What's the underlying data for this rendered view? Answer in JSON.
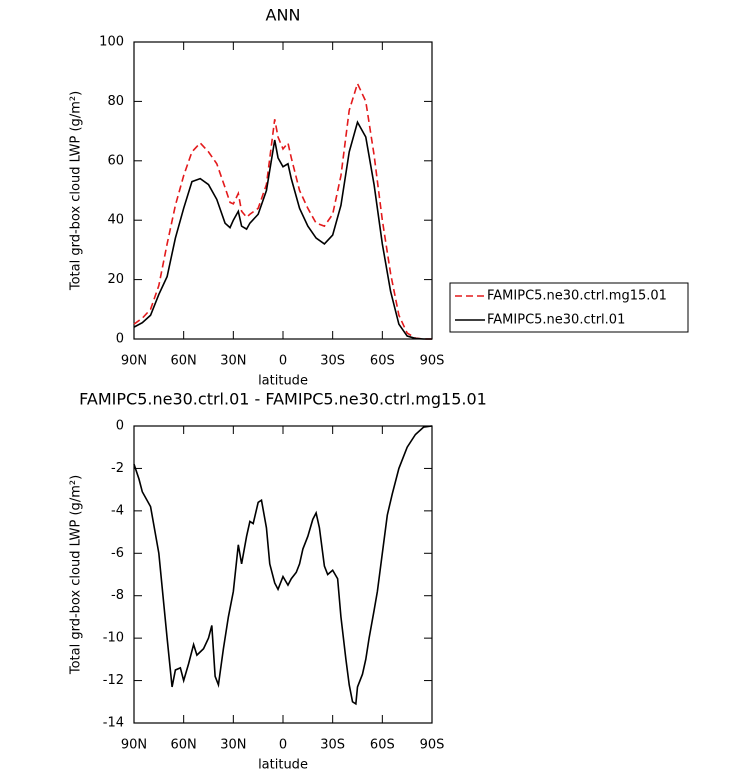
{
  "chart_data": [
    {
      "type": "line",
      "title": "ANN",
      "x_label": "latitude",
      "y_label": "Total grd-box cloud LWP (g/m²)",
      "x": [
        90,
        85,
        80,
        75,
        70,
        65,
        60,
        55,
        50,
        45,
        40,
        35,
        32,
        30,
        27,
        25,
        22,
        20,
        15,
        10,
        5,
        3,
        0,
        -3,
        -5,
        -10,
        -15,
        -20,
        -25,
        -30,
        -35,
        -40,
        -45,
        -50,
        -55,
        -60,
        -65,
        -70,
        -75,
        -80,
        -85,
        -90
      ],
      "series": [
        {
          "name": "FAMIPC5.ne30.ctrl.mg15.01",
          "color": "#e31a1c",
          "line_style": "dashed",
          "values": [
            5,
            7,
            10,
            18,
            32,
            45,
            55,
            63,
            66,
            63,
            59,
            51,
            46,
            45.5,
            49,
            43,
            41,
            42,
            44,
            52,
            74,
            68,
            64,
            66,
            61,
            50,
            44,
            39,
            38,
            42,
            55,
            77,
            86,
            80,
            62,
            40,
            22,
            8,
            2,
            0.3,
            0,
            0
          ]
        },
        {
          "name": "FAMIPC5.ne30.ctrl.01",
          "color": "#000000",
          "line_style": "solid",
          "values": [
            4,
            5.5,
            8,
            15,
            21,
            34,
            44,
            53,
            54,
            52,
            47,
            39,
            37.5,
            40,
            43,
            38,
            37,
            39,
            42,
            50,
            67,
            61,
            58,
            59,
            54,
            44,
            38,
            34,
            32,
            35,
            45,
            63,
            73,
            68,
            52,
            32,
            16,
            5,
            1,
            0.2,
            0,
            0
          ]
        }
      ],
      "xlim": [
        90,
        -90
      ],
      "xticks": [
        {
          "value": 90,
          "label": "90N"
        },
        {
          "value": 60,
          "label": "60N"
        },
        {
          "value": 30,
          "label": "30N"
        },
        0,
        {
          "value": -30,
          "label": "30S"
        },
        {
          "value": -60,
          "label": "60S"
        },
        {
          "value": -90,
          "label": "90S"
        }
      ],
      "ylim": [
        0,
        100
      ],
      "yticks": [
        0,
        20,
        40,
        60,
        80,
        100
      ],
      "legend": "outside-right"
    },
    {
      "type": "line",
      "title": "FAMIPC5.ne30.ctrl.01 - FAMIPC5.ne30.ctrl.mg15.01",
      "x_label": "latitude",
      "y_label": "Total grd-box cloud LWP (g/m²)",
      "x": [
        90,
        87,
        85,
        80,
        75,
        70,
        67,
        65,
        62,
        60,
        57,
        54,
        52,
        48,
        45,
        43,
        41,
        39,
        36,
        33,
        30,
        27,
        25,
        22,
        20,
        18,
        15,
        13,
        10,
        8,
        5,
        3,
        0,
        -3,
        -5,
        -8,
        -10,
        -12,
        -15,
        -18,
        -20,
        -22,
        -25,
        -27,
        -30,
        -33,
        -35,
        -38,
        -40,
        -42,
        -44,
        -45,
        -48,
        -50,
        -52,
        -55,
        -57,
        -60,
        -63,
        -66,
        -70,
        -75,
        -80,
        -85,
        -90
      ],
      "series": [
        {
          "color": "#000000",
          "line_style": "solid",
          "values": [
            -1.8,
            -2.5,
            -3.1,
            -3.8,
            -6,
            -10,
            -12.3,
            -11.5,
            -11.4,
            -12,
            -11.2,
            -10.3,
            -10.8,
            -10.5,
            -10,
            -9.4,
            -11.8,
            -12.2,
            -10.5,
            -9,
            -7.8,
            -5.6,
            -6.5,
            -5.2,
            -4.5,
            -4.6,
            -3.6,
            -3.5,
            -4.8,
            -6.5,
            -7.4,
            -7.7,
            -7.1,
            -7.5,
            -7.2,
            -6.9,
            -6.5,
            -5.8,
            -5.2,
            -4.4,
            -4.1,
            -4.8,
            -6.6,
            -7,
            -6.8,
            -7.2,
            -9,
            -11,
            -12.2,
            -13,
            -13.1,
            -12.3,
            -11.7,
            -11,
            -10,
            -8.7,
            -7.8,
            -6,
            -4.2,
            -3.2,
            -2,
            -1,
            -0.4,
            -0.05,
            0
          ]
        }
      ],
      "xlim": [
        90,
        -90
      ],
      "xticks": [
        {
          "value": 90,
          "label": "90N"
        },
        {
          "value": 60,
          "label": "60N"
        },
        {
          "value": 30,
          "label": "30N"
        },
        0,
        {
          "value": -30,
          "label": "30S"
        },
        {
          "value": -60,
          "label": "60S"
        },
        {
          "value": -90,
          "label": "90S"
        }
      ],
      "ylim": [
        -14,
        0
      ],
      "yticks": [
        -14,
        -12,
        -10,
        -8,
        -6,
        -4,
        -2,
        0
      ]
    }
  ]
}
